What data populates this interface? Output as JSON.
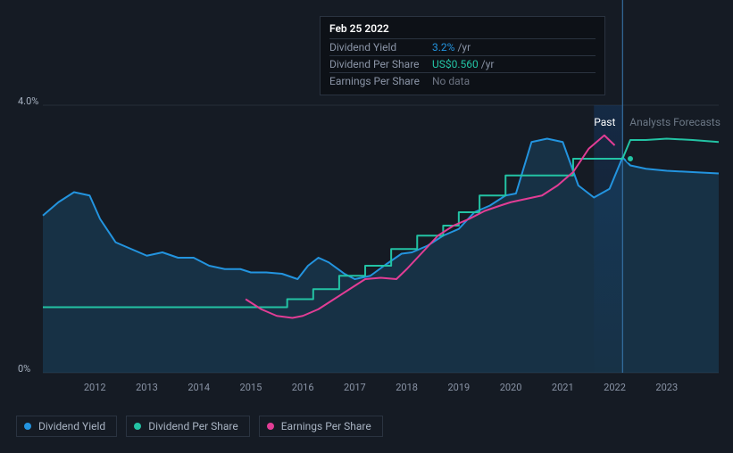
{
  "tooltip": {
    "title": "Feb 25 2022",
    "rows": [
      {
        "label": "Dividend Yield",
        "value": "3.2%",
        "suffix": "/yr",
        "color": "#2394df"
      },
      {
        "label": "Dividend Per Share",
        "value": "US$0.560",
        "suffix": "/yr",
        "color": "#23c3a4"
      },
      {
        "label": "Earnings Per Share",
        "value": "No data",
        "suffix": "",
        "color": "#6b7280"
      }
    ]
  },
  "annotations": {
    "past": {
      "label": "Past",
      "color": "#ffffff"
    },
    "forecasts": {
      "label": "Analysts Forecasts",
      "color": "#6b7785"
    }
  },
  "chart": {
    "type": "line",
    "background": "#151b24",
    "plot_bg": "#151b24",
    "grid_color": "#252d38",
    "y_axis": {
      "min": 0,
      "max": 4.0,
      "ticks": [
        {
          "value": 0,
          "label": "0%"
        },
        {
          "value": 4.0,
          "label": "4.0%"
        }
      ],
      "label_color": "#a8b3c2",
      "label_fontsize": 11
    },
    "x_axis": {
      "labels": [
        "2012",
        "2013",
        "2014",
        "2015",
        "2016",
        "2017",
        "2018",
        "2019",
        "2020",
        "2021",
        "2022",
        "2023"
      ],
      "label_color": "#8a94a6",
      "label_fontsize": 11
    },
    "x_domain_years": {
      "min": 2011.0,
      "max": 2024.0
    },
    "cursor_year": 2022.15,
    "past_boundary_year": 2021.6,
    "series": [
      {
        "name": "Dividend Yield",
        "color": "#2394df",
        "line_width": 2,
        "area_fill": "rgba(35,148,223,0.18)",
        "marker_year": 2022.3,
        "data": [
          [
            2011.0,
            2.35
          ],
          [
            2011.3,
            2.55
          ],
          [
            2011.6,
            2.7
          ],
          [
            2011.9,
            2.65
          ],
          [
            2012.1,
            2.3
          ],
          [
            2012.4,
            1.95
          ],
          [
            2012.7,
            1.85
          ],
          [
            2013.0,
            1.75
          ],
          [
            2013.3,
            1.8
          ],
          [
            2013.6,
            1.72
          ],
          [
            2013.9,
            1.72
          ],
          [
            2014.2,
            1.6
          ],
          [
            2014.5,
            1.55
          ],
          [
            2014.8,
            1.55
          ],
          [
            2015.0,
            1.5
          ],
          [
            2015.3,
            1.5
          ],
          [
            2015.6,
            1.48
          ],
          [
            2015.9,
            1.4
          ],
          [
            2016.1,
            1.6
          ],
          [
            2016.3,
            1.72
          ],
          [
            2016.5,
            1.65
          ],
          [
            2016.8,
            1.48
          ],
          [
            2017.0,
            1.4
          ],
          [
            2017.3,
            1.45
          ],
          [
            2017.6,
            1.62
          ],
          [
            2017.9,
            1.78
          ],
          [
            2018.1,
            1.8
          ],
          [
            2018.4,
            1.9
          ],
          [
            2018.7,
            2.05
          ],
          [
            2019.0,
            2.15
          ],
          [
            2019.3,
            2.4
          ],
          [
            2019.6,
            2.5
          ],
          [
            2019.9,
            2.65
          ],
          [
            2020.1,
            2.68
          ],
          [
            2020.4,
            3.45
          ],
          [
            2020.7,
            3.5
          ],
          [
            2021.0,
            3.45
          ],
          [
            2021.3,
            2.8
          ],
          [
            2021.6,
            2.62
          ],
          [
            2021.9,
            2.75
          ],
          [
            2022.15,
            3.22
          ],
          [
            2022.3,
            3.1
          ],
          [
            2022.6,
            3.05
          ],
          [
            2023.0,
            3.02
          ],
          [
            2023.5,
            3.0
          ],
          [
            2024.0,
            2.98
          ]
        ]
      },
      {
        "name": "Dividend Per Share",
        "color": "#23c3a4",
        "line_width": 2,
        "marker_year": 2022.3,
        "data": [
          [
            2011.0,
            0.98
          ],
          [
            2012.0,
            0.98
          ],
          [
            2013.0,
            0.98
          ],
          [
            2014.0,
            0.98
          ],
          [
            2015.0,
            0.98
          ],
          [
            2015.7,
            0.98
          ],
          [
            2015.7,
            1.1
          ],
          [
            2016.2,
            1.1
          ],
          [
            2016.2,
            1.25
          ],
          [
            2016.7,
            1.25
          ],
          [
            2016.7,
            1.45
          ],
          [
            2017.2,
            1.45
          ],
          [
            2017.2,
            1.6
          ],
          [
            2017.7,
            1.6
          ],
          [
            2017.7,
            1.85
          ],
          [
            2018.2,
            1.85
          ],
          [
            2018.2,
            2.05
          ],
          [
            2018.7,
            2.05
          ],
          [
            2018.7,
            2.2
          ],
          [
            2019.0,
            2.2
          ],
          [
            2019.0,
            2.4
          ],
          [
            2019.4,
            2.4
          ],
          [
            2019.4,
            2.65
          ],
          [
            2019.9,
            2.65
          ],
          [
            2019.9,
            2.95
          ],
          [
            2020.5,
            2.95
          ],
          [
            2020.5,
            2.95
          ],
          [
            2021.2,
            2.95
          ],
          [
            2021.2,
            3.2
          ],
          [
            2022.15,
            3.2
          ],
          [
            2022.3,
            3.48
          ],
          [
            2022.6,
            3.48
          ],
          [
            2023.0,
            3.5
          ],
          [
            2023.5,
            3.48
          ],
          [
            2024.0,
            3.45
          ]
        ]
      },
      {
        "name": "Earnings Per Share",
        "color": "#e23d95",
        "line_width": 2,
        "data": [
          [
            2014.9,
            1.1
          ],
          [
            2015.2,
            0.95
          ],
          [
            2015.5,
            0.85
          ],
          [
            2015.8,
            0.82
          ],
          [
            2016.0,
            0.85
          ],
          [
            2016.3,
            0.95
          ],
          [
            2016.6,
            1.1
          ],
          [
            2016.9,
            1.25
          ],
          [
            2017.2,
            1.4
          ],
          [
            2017.5,
            1.42
          ],
          [
            2017.8,
            1.4
          ],
          [
            2018.0,
            1.55
          ],
          [
            2018.3,
            1.8
          ],
          [
            2018.6,
            2.05
          ],
          [
            2018.9,
            2.2
          ],
          [
            2019.2,
            2.3
          ],
          [
            2019.5,
            2.42
          ],
          [
            2019.8,
            2.5
          ],
          [
            2020.0,
            2.55
          ],
          [
            2020.3,
            2.6
          ],
          [
            2020.6,
            2.65
          ],
          [
            2020.9,
            2.8
          ],
          [
            2021.2,
            3.0
          ],
          [
            2021.5,
            3.35
          ],
          [
            2021.8,
            3.55
          ],
          [
            2022.0,
            3.4
          ]
        ]
      }
    ]
  },
  "legend": [
    {
      "label": "Dividend Yield",
      "color": "#2394df"
    },
    {
      "label": "Dividend Per Share",
      "color": "#23c3a4"
    },
    {
      "label": "Earnings Per Share",
      "color": "#e23d95"
    }
  ]
}
